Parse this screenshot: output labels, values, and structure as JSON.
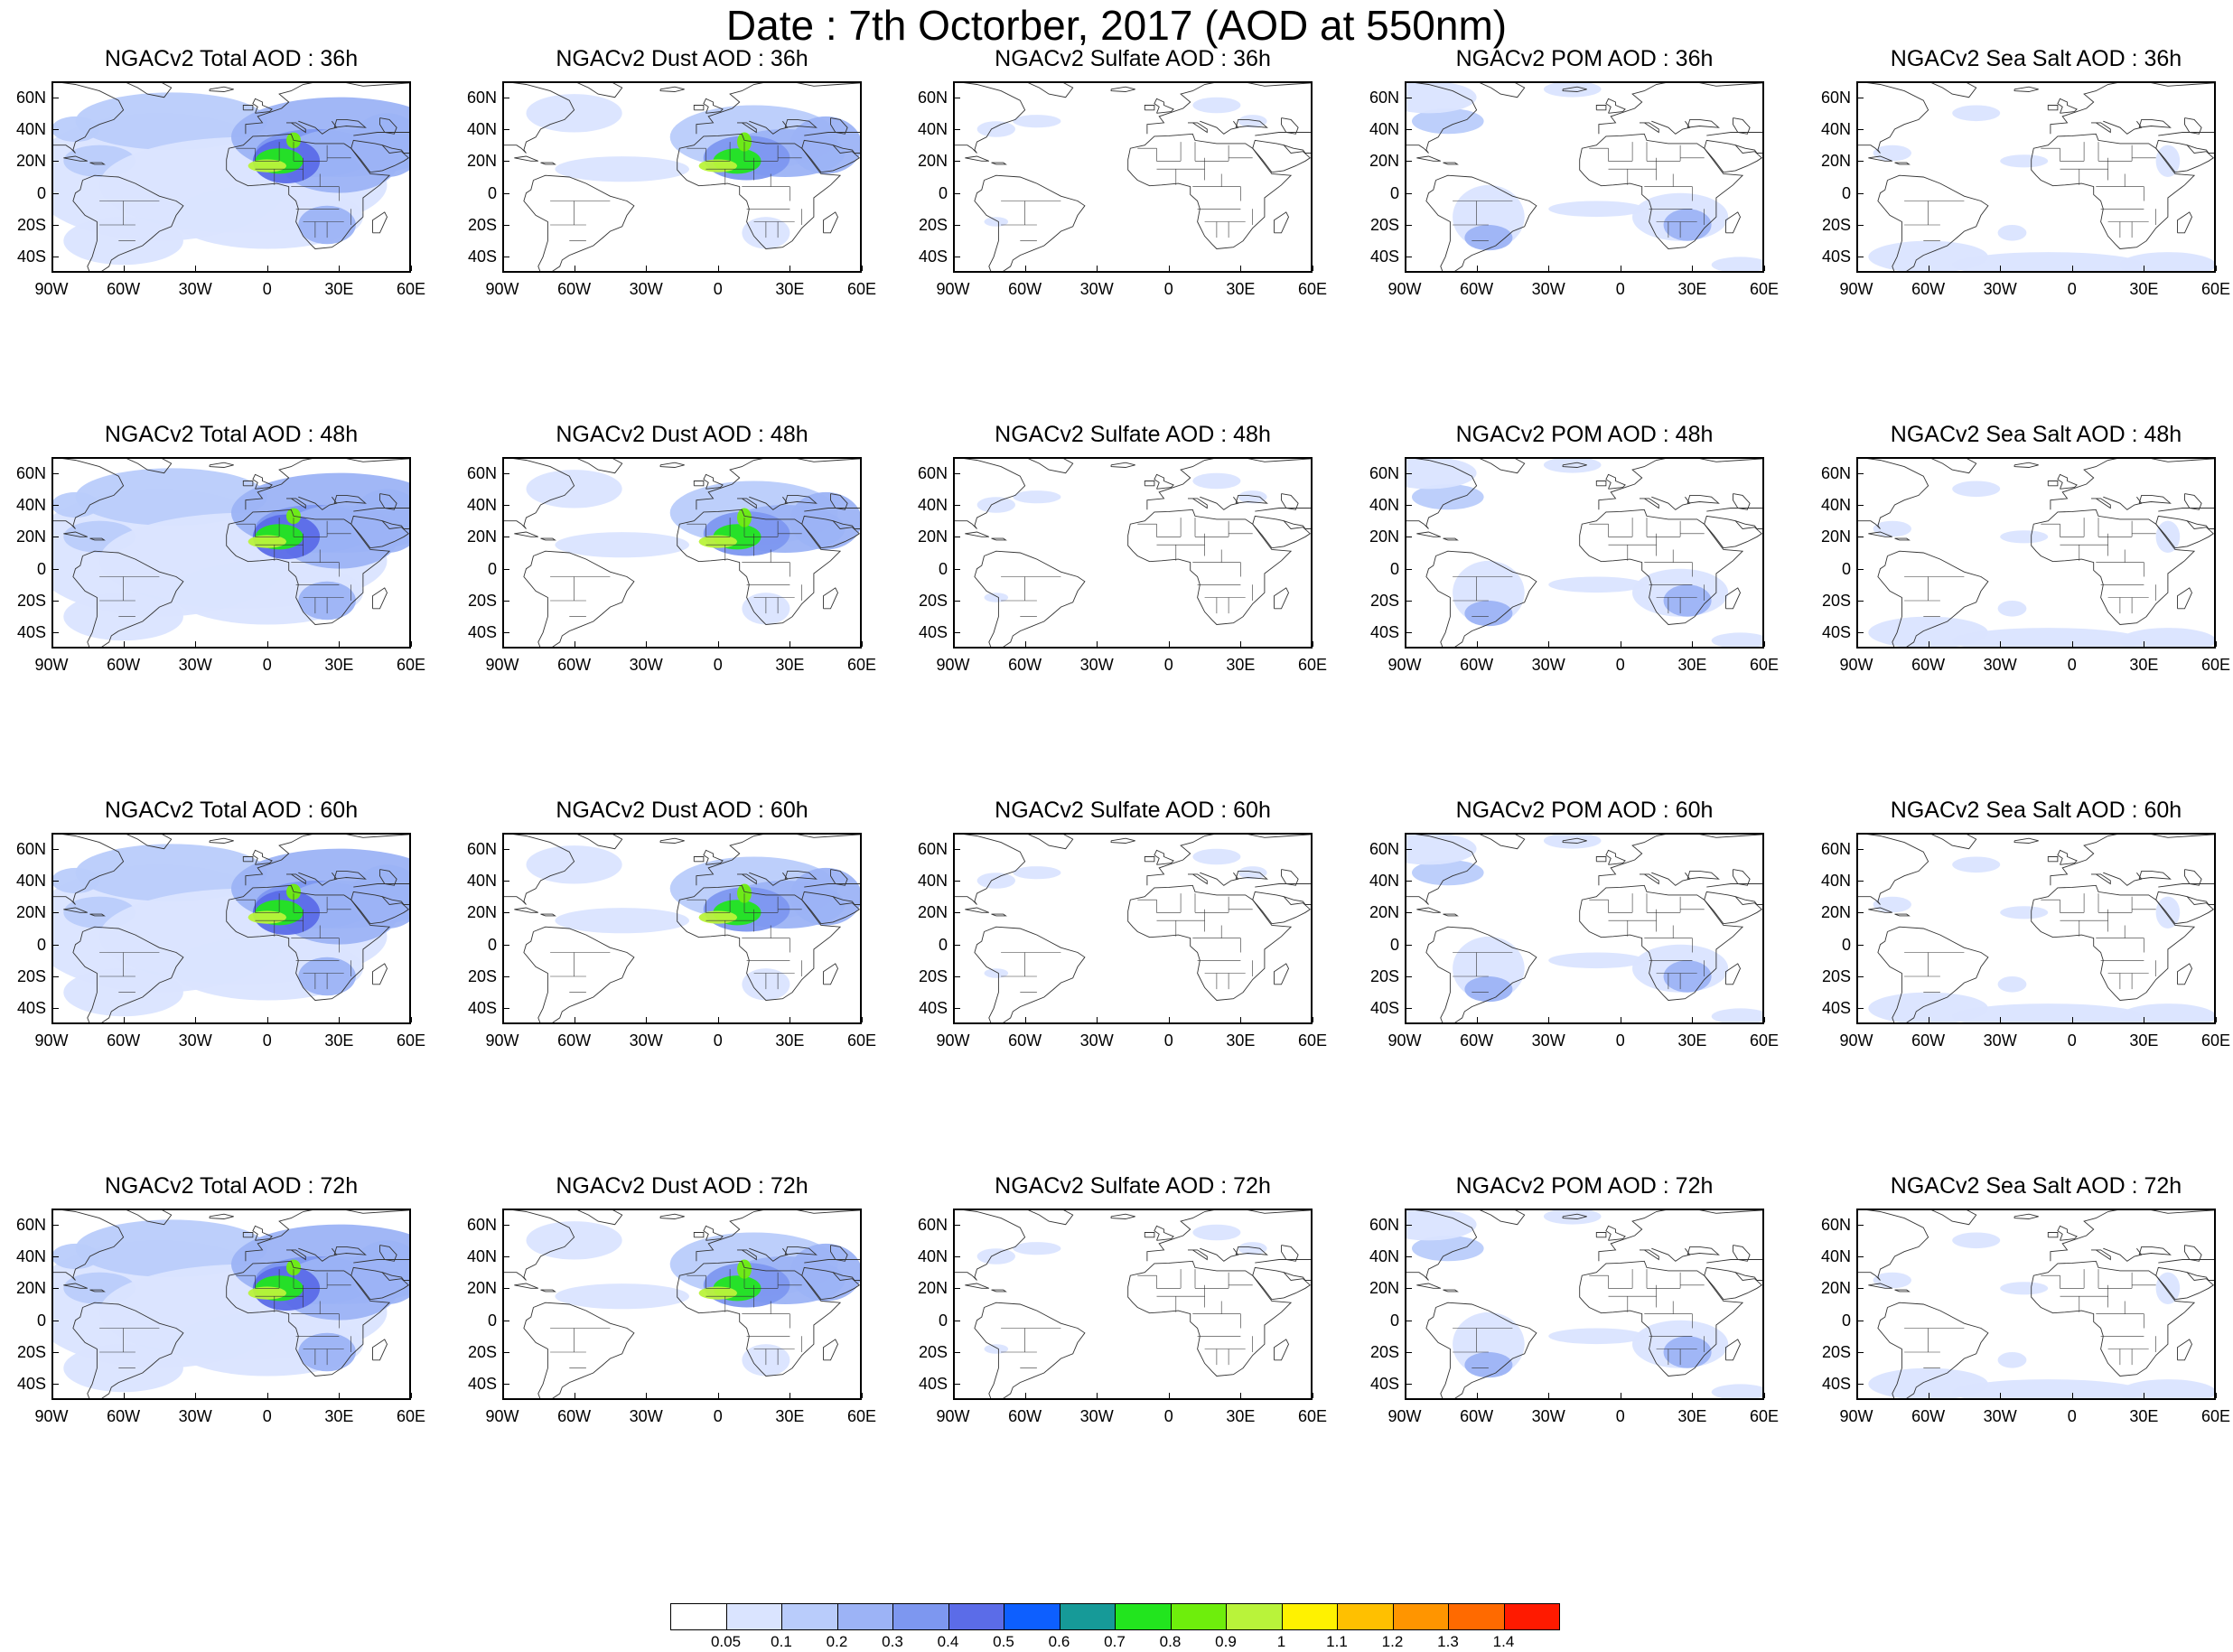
{
  "title": "Date : 7th Octorber, 2017 (AOD at 550nm)",
  "lat_labels": [
    "60N",
    "40N",
    "20N",
    "0",
    "20S",
    "40S"
  ],
  "lon_labels": [
    "90W",
    "60W",
    "30W",
    "0",
    "30E",
    "60E"
  ],
  "map_extent": {
    "lon_min": -90,
    "lon_max": 60,
    "lat_min": -50,
    "lat_max": 70
  },
  "rows": [
    {
      "panels": [
        {
          "title": "NGACv2 Total AOD : 36h",
          "species": "total"
        },
        {
          "title": "NGACv2 Dust AOD : 36h",
          "species": "dust"
        },
        {
          "title": "NGACv2 Sulfate AOD : 36h",
          "species": "sulfate"
        },
        {
          "title": "NGACv2 POM AOD : 36h",
          "species": "pom"
        },
        {
          "title": "NGACv2 Sea Salt AOD : 36h",
          "species": "seasalt"
        }
      ]
    },
    {
      "panels": [
        {
          "title": "NGACv2 Total AOD : 48h",
          "species": "total"
        },
        {
          "title": "NGACv2 Dust AOD : 48h",
          "species": "dust"
        },
        {
          "title": "NGACv2 Sulfate AOD : 48h",
          "species": "sulfate"
        },
        {
          "title": "NGACv2 POM AOD : 48h",
          "species": "pom"
        },
        {
          "title": "NGACv2 Sea Salt AOD : 48h",
          "species": "seasalt"
        }
      ]
    },
    {
      "panels": [
        {
          "title": "NGACv2 Total AOD : 60h",
          "species": "total"
        },
        {
          "title": "NGACv2 Dust AOD : 60h",
          "species": "dust"
        },
        {
          "title": "NGACv2 Sulfate AOD : 60h",
          "species": "sulfate"
        },
        {
          "title": "NGACv2 POM AOD : 60h",
          "species": "pom"
        },
        {
          "title": "NGACv2 Sea Salt AOD : 60h",
          "species": "seasalt"
        }
      ]
    },
    {
      "panels": [
        {
          "title": "NGACv2 Total AOD : 72h",
          "species": "total"
        },
        {
          "title": "NGACv2 Dust AOD : 72h",
          "species": "dust"
        },
        {
          "title": "NGACv2 Sulfate AOD : 72h",
          "species": "sulfate"
        },
        {
          "title": "NGACv2 POM AOD : 72h",
          "species": "pom"
        },
        {
          "title": "NGACv2 Sea Salt  AOD : 72h",
          "species": "seasalt"
        }
      ]
    }
  ],
  "colorbar": {
    "labels": [
      "0.05",
      "0.1",
      "0.2",
      "0.3",
      "0.4",
      "0.5",
      "0.6",
      "0.7",
      "0.8",
      "0.9",
      "1",
      "1.1",
      "1.2",
      "1.3",
      "1.4"
    ],
    "colors": [
      "#ffffff",
      "#dae4ff",
      "#b9ccfb",
      "#9cb3f6",
      "#7d97f0",
      "#5b6ce8",
      "#0d5fff",
      "#169a98",
      "#22e51e",
      "#6eee0c",
      "#b9f33a",
      "#fff200",
      "#ffc000",
      "#ff9500",
      "#ff6a00",
      "#ff1a00"
    ]
  }
}
